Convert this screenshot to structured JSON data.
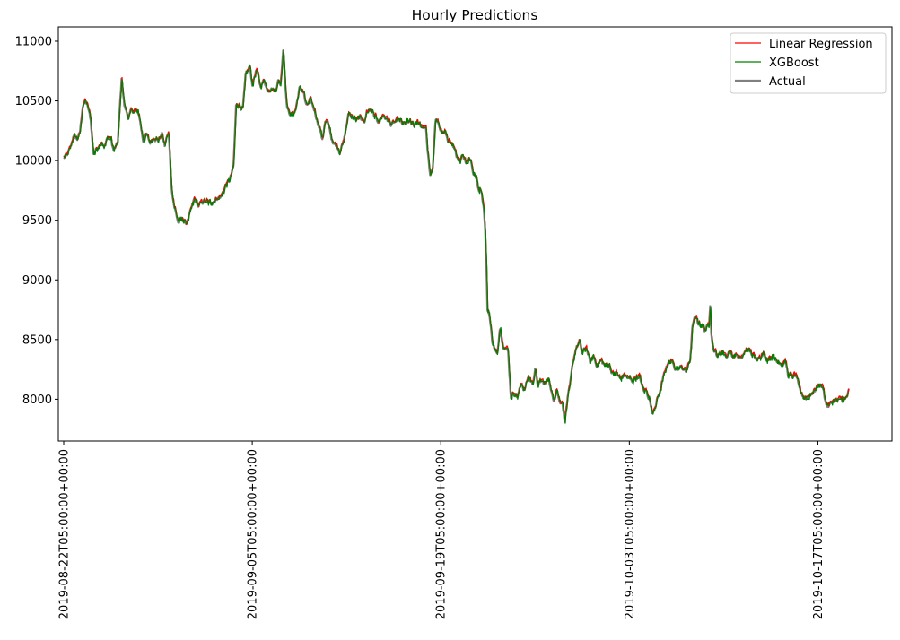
{
  "chart_data": {
    "type": "line",
    "title": "Hourly Predictions",
    "xlabel": "",
    "ylabel": "",
    "x_ticks": [
      "2019-08-22T05:00:00+00:00",
      "2019-09-05T05:00:00+00:00",
      "2019-09-19T05:00:00+00:00",
      "2019-10-03T05:00:00+00:00",
      "2019-10-17T05:00:00+00:00"
    ],
    "y_ticks": [
      8000,
      8500,
      9000,
      9500,
      10000,
      10500,
      11000
    ],
    "ylim": [
      7650,
      11120
    ],
    "x_range_days": [
      -0.4,
      61.5
    ],
    "data_span_days": [
      0,
      58.3
    ],
    "grid": false,
    "legend_position": "top-right",
    "series": [
      {
        "name": "Linear Regression",
        "color": "#ff0000",
        "line_width": 1.2
      },
      {
        "name": "XGBoost",
        "color": "#008000",
        "line_width": 1.2
      },
      {
        "name": "Actual",
        "color": "#808080",
        "line_width": 2.2
      }
    ],
    "anchors_actual": [
      [
        0,
        10020
      ],
      [
        0.3,
        10050
      ],
      [
        0.5,
        10110
      ],
      [
        0.7,
        10200
      ],
      [
        1.0,
        10180
      ],
      [
        1.2,
        10230
      ],
      [
        1.4,
        10460
      ],
      [
        1.6,
        10500
      ],
      [
        1.8,
        10440
      ],
      [
        2.0,
        10340
      ],
      [
        2.2,
        10060
      ],
      [
        2.5,
        10110
      ],
      [
        2.8,
        10160
      ],
      [
        3.0,
        10100
      ],
      [
        3.2,
        10190
      ],
      [
        3.5,
        10180
      ],
      [
        3.7,
        10080
      ],
      [
        4.0,
        10140
      ],
      [
        4.3,
        10690
      ],
      [
        4.5,
        10460
      ],
      [
        4.8,
        10360
      ],
      [
        5.0,
        10410
      ],
      [
        5.3,
        10420
      ],
      [
        5.6,
        10380
      ],
      [
        5.9,
        10160
      ],
      [
        6.1,
        10220
      ],
      [
        6.4,
        10150
      ],
      [
        6.7,
        10200
      ],
      [
        7.0,
        10170
      ],
      [
        7.3,
        10220
      ],
      [
        7.5,
        10120
      ],
      [
        7.7,
        10220
      ],
      [
        7.8,
        10210
      ],
      [
        8.0,
        9780
      ],
      [
        8.2,
        9620
      ],
      [
        8.5,
        9480
      ],
      [
        8.8,
        9510
      ],
      [
        9.1,
        9470
      ],
      [
        9.4,
        9560
      ],
      [
        9.7,
        9680
      ],
      [
        10.0,
        9620
      ],
      [
        10.4,
        9660
      ],
      [
        10.8,
        9640
      ],
      [
        11.1,
        9660
      ],
      [
        11.4,
        9690
      ],
      [
        11.7,
        9700
      ],
      [
        12.0,
        9790
      ],
      [
        12.3,
        9830
      ],
      [
        12.6,
        9940
      ],
      [
        12.8,
        10470
      ],
      [
        13.1,
        10460
      ],
      [
        13.3,
        10430
      ],
      [
        13.5,
        10700
      ],
      [
        13.8,
        10790
      ],
      [
        14.0,
        10640
      ],
      [
        14.3,
        10760
      ],
      [
        14.6,
        10620
      ],
      [
        14.9,
        10680
      ],
      [
        15.1,
        10590
      ],
      [
        15.4,
        10610
      ],
      [
        15.7,
        10580
      ],
      [
        15.9,
        10670
      ],
      [
        16.1,
        10640
      ],
      [
        16.3,
        10950
      ],
      [
        16.5,
        10560
      ],
      [
        16.6,
        10430
      ],
      [
        16.9,
        10380
      ],
      [
        17.2,
        10420
      ],
      [
        17.5,
        10600
      ],
      [
        17.8,
        10580
      ],
      [
        18.0,
        10450
      ],
      [
        18.3,
        10500
      ],
      [
        18.6,
        10430
      ],
      [
        18.9,
        10310
      ],
      [
        19.2,
        10180
      ],
      [
        19.4,
        10320
      ],
      [
        19.7,
        10290
      ],
      [
        20.0,
        10130
      ],
      [
        20.3,
        10130
      ],
      [
        20.5,
        10070
      ],
      [
        20.8,
        10180
      ],
      [
        21.1,
        10390
      ],
      [
        21.4,
        10360
      ],
      [
        21.7,
        10340
      ],
      [
        22.0,
        10380
      ],
      [
        22.3,
        10300
      ],
      [
        22.5,
        10410
      ],
      [
        22.8,
        10420
      ],
      [
        23.1,
        10360
      ],
      [
        23.4,
        10330
      ],
      [
        23.7,
        10380
      ],
      [
        24.0,
        10350
      ],
      [
        24.3,
        10300
      ],
      [
        24.6,
        10320
      ],
      [
        24.9,
        10340
      ],
      [
        25.2,
        10300
      ],
      [
        25.5,
        10320
      ],
      [
        25.8,
        10310
      ],
      [
        26.1,
        10290
      ],
      [
        26.3,
        10320
      ],
      [
        26.6,
        10290
      ],
      [
        26.9,
        10280
      ],
      [
        27.0,
        10080
      ],
      [
        27.2,
        9880
      ],
      [
        27.4,
        9930
      ],
      [
        27.6,
        10330
      ],
      [
        27.9,
        10300
      ],
      [
        28.1,
        10230
      ],
      [
        28.3,
        10240
      ],
      [
        28.5,
        10180
      ],
      [
        28.8,
        10120
      ],
      [
        29.1,
        10060
      ],
      [
        29.4,
        10000
      ],
      [
        29.6,
        10050
      ],
      [
        29.9,
        9990
      ],
      [
        30.2,
        10020
      ],
      [
        30.4,
        9900
      ],
      [
        30.6,
        9860
      ],
      [
        30.8,
        9760
      ],
      [
        31.0,
        9760
      ],
      [
        31.2,
        9600
      ],
      [
        31.3,
        9400
      ],
      [
        31.4,
        9050
      ],
      [
        31.45,
        8750
      ],
      [
        31.6,
        8720
      ],
      [
        31.8,
        8500
      ],
      [
        32.0,
        8420
      ],
      [
        32.2,
        8360
      ],
      [
        32.4,
        8630
      ],
      [
        32.6,
        8450
      ],
      [
        32.8,
        8450
      ],
      [
        33.0,
        8390
      ],
      [
        33.2,
        8020
      ],
      [
        33.4,
        8060
      ],
      [
        33.7,
        8020
      ],
      [
        34.0,
        8140
      ],
      [
        34.2,
        8070
      ],
      [
        34.5,
        8190
      ],
      [
        34.8,
        8130
      ],
      [
        35.0,
        8250
      ],
      [
        35.2,
        8120
      ],
      [
        35.5,
        8150
      ],
      [
        35.8,
        8120
      ],
      [
        36.0,
        8200
      ],
      [
        36.2,
        8050
      ],
      [
        36.4,
        8000
      ],
      [
        36.6,
        8100
      ],
      [
        36.8,
        7980
      ],
      [
        37.0,
        7990
      ],
      [
        37.2,
        7820
      ],
      [
        37.4,
        8000
      ],
      [
        37.6,
        8110
      ],
      [
        37.8,
        8300
      ],
      [
        38.0,
        8420
      ],
      [
        38.3,
        8480
      ],
      [
        38.5,
        8380
      ],
      [
        38.8,
        8440
      ],
      [
        39.1,
        8300
      ],
      [
        39.3,
        8360
      ],
      [
        39.6,
        8290
      ],
      [
        39.9,
        8320
      ],
      [
        40.2,
        8280
      ],
      [
        40.5,
        8290
      ],
      [
        40.8,
        8200
      ],
      [
        41.0,
        8220
      ],
      [
        41.3,
        8170
      ],
      [
        41.6,
        8200
      ],
      [
        41.9,
        8180
      ],
      [
        42.2,
        8150
      ],
      [
        42.5,
        8190
      ],
      [
        42.8,
        8180
      ],
      [
        43.0,
        8080
      ],
      [
        43.3,
        8060
      ],
      [
        43.5,
        8000
      ],
      [
        43.7,
        7880
      ],
      [
        43.9,
        7950
      ],
      [
        44.1,
        8010
      ],
      [
        44.3,
        8070
      ],
      [
        44.6,
        8250
      ],
      [
        44.9,
        8280
      ],
      [
        45.1,
        8320
      ],
      [
        45.4,
        8260
      ],
      [
        45.6,
        8250
      ],
      [
        45.9,
        8270
      ],
      [
        46.2,
        8230
      ],
      [
        46.5,
        8320
      ],
      [
        46.7,
        8630
      ],
      [
        46.9,
        8680
      ],
      [
        47.1,
        8640
      ],
      [
        47.4,
        8620
      ],
      [
        47.6,
        8580
      ],
      [
        47.9,
        8620
      ],
      [
        48.0,
        8810
      ],
      [
        48.1,
        8520
      ],
      [
        48.3,
        8400
      ],
      [
        48.6,
        8360
      ],
      [
        48.9,
        8400
      ],
      [
        49.2,
        8360
      ],
      [
        49.4,
        8400
      ],
      [
        49.7,
        8360
      ],
      [
        50.0,
        8370
      ],
      [
        50.3,
        8330
      ],
      [
        50.5,
        8380
      ],
      [
        50.8,
        8420
      ],
      [
        51.1,
        8380
      ],
      [
        51.3,
        8340
      ],
      [
        51.6,
        8360
      ],
      [
        51.9,
        8380
      ],
      [
        52.2,
        8340
      ],
      [
        52.5,
        8360
      ],
      [
        52.8,
        8340
      ],
      [
        53.0,
        8330
      ],
      [
        53.3,
        8300
      ],
      [
        53.6,
        8310
      ],
      [
        53.8,
        8200
      ],
      [
        54.1,
        8190
      ],
      [
        54.4,
        8200
      ],
      [
        54.6,
        8080
      ],
      [
        54.9,
        8020
      ],
      [
        55.2,
        8010
      ],
      [
        55.5,
        8050
      ],
      [
        55.8,
        8080
      ],
      [
        56.1,
        8130
      ],
      [
        56.4,
        8090
      ],
      [
        56.6,
        7960
      ],
      [
        56.8,
        7940
      ],
      [
        57.1,
        7990
      ],
      [
        57.4,
        7980
      ],
      [
        57.7,
        8000
      ],
      [
        58.0,
        7990
      ],
      [
        58.2,
        8030
      ],
      [
        58.3,
        8070
      ]
    ]
  }
}
